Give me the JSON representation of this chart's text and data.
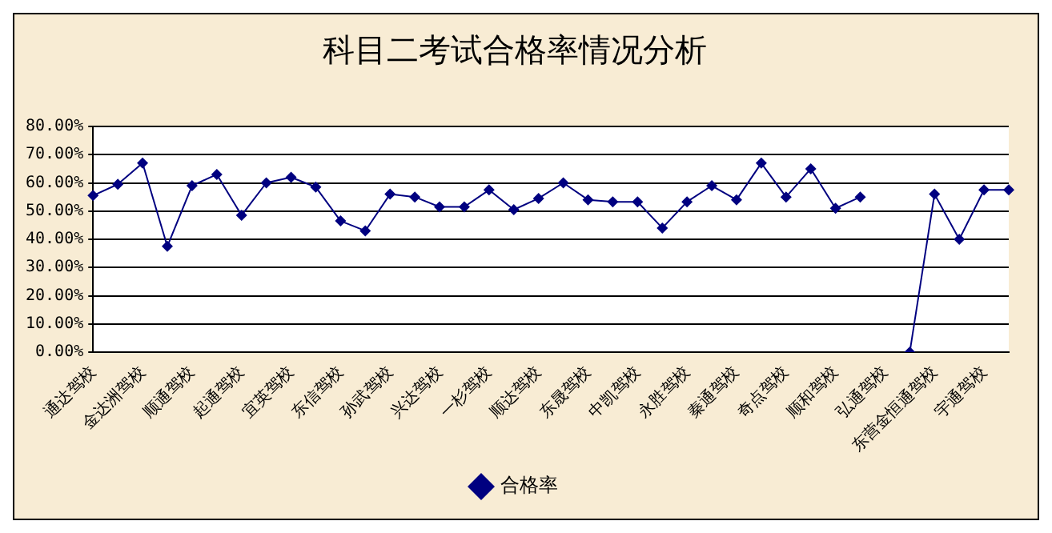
{
  "chart_data": {
    "type": "line",
    "title": "科目二考试合格率情况分析",
    "categories": [
      "通达驾校",
      null,
      "金达洲驾校",
      null,
      "顺通驾校",
      null,
      "起通驾校",
      null,
      "宜英驾校",
      null,
      "东信驾校",
      null,
      "孙武驾校",
      null,
      "兴达驾校",
      null,
      "一杉驾校",
      null,
      "顺达驾校",
      null,
      "东晟驾校",
      null,
      "中凯驾校",
      null,
      "永胜驾校",
      null,
      "秦通驾校",
      null,
      "奇点驾校",
      null,
      "顺和驾校",
      null,
      "弘通驾校",
      null,
      "东营金恒通驾校",
      null,
      "宇通驾校",
      null
    ],
    "series": [
      {
        "name": "合格率",
        "color": "#000080",
        "values": [
          55.5,
          59.5,
          67,
          37.5,
          59,
          63,
          48.5,
          60,
          62,
          58.5,
          46.5,
          43,
          56,
          55,
          51.5,
          51.5,
          57.5,
          50.5,
          54.5,
          60,
          54,
          53.3,
          53.3,
          44,
          53.3,
          59,
          54,
          67,
          55,
          65,
          51,
          55,
          null,
          0,
          56,
          40,
          57.5,
          57.5
        ]
      }
    ],
    "ylim": [
      0,
      80
    ],
    "yticks": [
      {
        "value": 0,
        "label": "0.00%"
      },
      {
        "value": 10,
        "label": "10.00%"
      },
      {
        "value": 20,
        "label": "20.00%"
      },
      {
        "value": 30,
        "label": "30.00%"
      },
      {
        "value": 40,
        "label": "40.00%"
      },
      {
        "value": 50,
        "label": "50.00%"
      },
      {
        "value": 60,
        "label": "60.00%"
      },
      {
        "value": 70,
        "label": "70.00%"
      },
      {
        "value": 80,
        "label": "80.00%"
      }
    ],
    "grid": "y",
    "legend": "bottom",
    "marker": "diamond",
    "line_style": "solid"
  }
}
